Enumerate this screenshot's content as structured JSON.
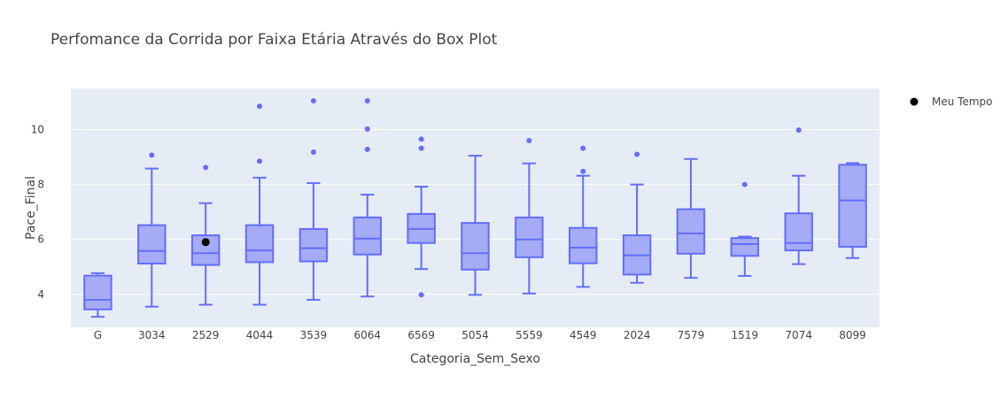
{
  "chart_data": {
    "type": "box",
    "title": "Perfomance da Corrida por Faixa Etária Através do Box Plot",
    "xlabel": "Categoria_Sem_Sexo",
    "ylabel": "Pace_Final",
    "ylim": [
      2.8,
      11.5
    ],
    "yticks": [
      4,
      6,
      8,
      10
    ],
    "grid": true,
    "legend_position": "top-right",
    "colors": {
      "box": "#636efa",
      "box_fill": "#a5abf4",
      "plot_bg": "#e5ecf6",
      "marker": "#000000"
    },
    "categories": [
      "G",
      "3034",
      "2529",
      "4044",
      "3539",
      "6064",
      "6569",
      "5054",
      "5559",
      "4549",
      "2024",
      "7579",
      "1519",
      "7074",
      "8099"
    ],
    "boxes": [
      {
        "category": "G",
        "lower": 3.18,
        "q1": 3.45,
        "median": 3.8,
        "q3": 4.68,
        "upper": 4.77,
        "outliers": []
      },
      {
        "category": "3034",
        "lower": 3.55,
        "q1": 5.12,
        "median": 5.58,
        "q3": 6.52,
        "upper": 8.58,
        "outliers": [
          9.07
        ]
      },
      {
        "category": "2529",
        "lower": 3.62,
        "q1": 5.07,
        "median": 5.5,
        "q3": 6.15,
        "upper": 7.32,
        "outliers": [
          8.62
        ]
      },
      {
        "category": "4044",
        "lower": 3.62,
        "q1": 5.17,
        "median": 5.6,
        "q3": 6.52,
        "upper": 8.25,
        "outliers": [
          8.85,
          10.85
        ]
      },
      {
        "category": "3539",
        "lower": 3.8,
        "q1": 5.2,
        "median": 5.68,
        "q3": 6.38,
        "upper": 8.05,
        "outliers": [
          9.18,
          11.05
        ]
      },
      {
        "category": "6064",
        "lower": 3.92,
        "q1": 5.45,
        "median": 6.03,
        "q3": 6.8,
        "upper": 7.63,
        "outliers": [
          9.28,
          10.02,
          11.05
        ]
      },
      {
        "category": "6569",
        "lower": 4.92,
        "q1": 5.87,
        "median": 6.38,
        "q3": 6.93,
        "upper": 7.92,
        "outliers": [
          3.98,
          9.32,
          9.65
        ]
      },
      {
        "category": "5054",
        "lower": 3.98,
        "q1": 4.9,
        "median": 5.5,
        "q3": 6.6,
        "upper": 9.05,
        "outliers": []
      },
      {
        "category": "5559",
        "lower": 4.03,
        "q1": 5.35,
        "median": 6.0,
        "q3": 6.8,
        "upper": 8.77,
        "outliers": [
          9.6
        ]
      },
      {
        "category": "4549",
        "lower": 4.27,
        "q1": 5.13,
        "median": 5.7,
        "q3": 6.42,
        "upper": 8.32,
        "outliers": [
          8.48,
          9.32
        ]
      },
      {
        "category": "2024",
        "lower": 4.42,
        "q1": 4.72,
        "median": 5.42,
        "q3": 6.15,
        "upper": 8.0,
        "outliers": [
          9.1
        ]
      },
      {
        "category": "7579",
        "lower": 4.6,
        "q1": 5.48,
        "median": 6.22,
        "q3": 7.1,
        "upper": 8.93,
        "outliers": []
      },
      {
        "category": "1519",
        "lower": 4.67,
        "q1": 5.4,
        "median": 5.83,
        "q3": 6.05,
        "upper": 6.1,
        "outliers": [
          8.0
        ]
      },
      {
        "category": "7074",
        "lower": 5.1,
        "q1": 5.6,
        "median": 5.87,
        "q3": 6.95,
        "upper": 8.32,
        "outliers": [
          9.98
        ]
      },
      {
        "category": "8099",
        "lower": 5.32,
        "q1": 5.73,
        "median": 7.42,
        "q3": 8.72,
        "upper": 8.78,
        "outliers": []
      }
    ],
    "marker_series": {
      "name": "Meu Tempo",
      "category": "2529",
      "value": 5.9
    }
  }
}
